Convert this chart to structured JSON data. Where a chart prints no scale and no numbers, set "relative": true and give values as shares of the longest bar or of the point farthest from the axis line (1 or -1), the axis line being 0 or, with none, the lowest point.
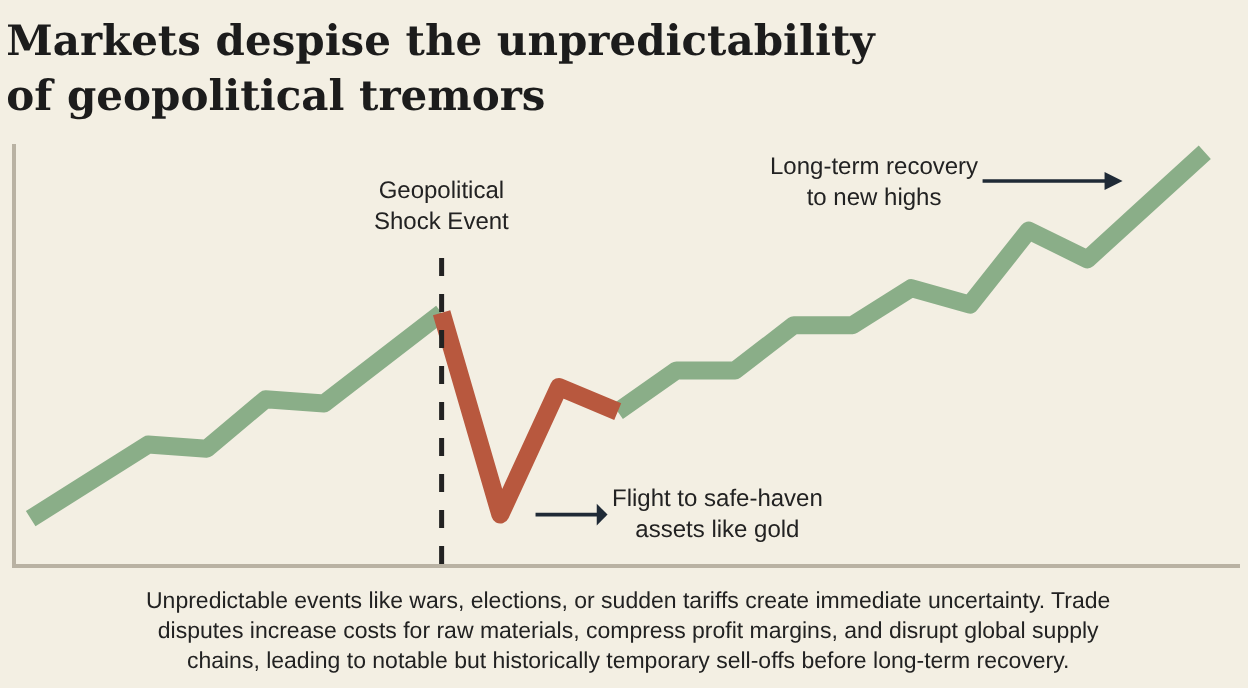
{
  "chart_data": {
    "type": "line",
    "title": "Markets despise the unpredictability\nof geopolitical tremors",
    "relative": true,
    "grid": false,
    "legend": false,
    "marker": "none",
    "line_style": "solid",
    "categories": [
      null,
      null,
      null,
      null,
      null,
      null,
      null,
      null,
      null,
      null,
      null,
      null,
      null,
      null,
      null,
      null,
      null,
      null,
      null,
      null,
      null
    ],
    "series": [
      {
        "color": "#8aae88",
        "values": [
          0.11,
          0.2,
          0.29,
          0.28,
          0.4,
          0.39,
          0.5,
          0.61,
          null,
          null,
          0.37,
          0.47,
          0.47,
          0.58,
          0.58,
          0.67,
          0.63,
          0.81,
          0.74,
          0.87,
          1
        ]
      },
      {
        "color": "#b8583e",
        "values": [
          null,
          null,
          null,
          null,
          null,
          null,
          null,
          0.61,
          0.12,
          0.43,
          0.37,
          null,
          null,
          null,
          null,
          null,
          null,
          null,
          null,
          null,
          null
        ]
      }
    ],
    "annotations": [
      "Geopolitical\nShock Event",
      "Long-term recovery\nto new highs",
      "Flight to safe-haven\nassets like gold",
      "Unpredictable events like wars, elections, or sudden tariffs create immediate uncertainty. Trade\ndisputes increase costs for raw materials, compress profit margins, and disrupt global supply\nchains, leading to notable but historically temporary sell-offs before long-term recovery."
    ]
  }
}
